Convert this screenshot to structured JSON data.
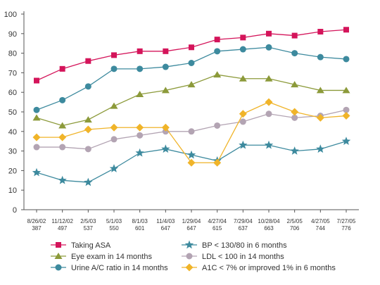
{
  "chart_data": {
    "type": "line",
    "categories": [
      [
        "8/26/02",
        "387"
      ],
      [
        "11/12/02",
        "497"
      ],
      [
        "2/5/03",
        "537"
      ],
      [
        "5/1/03",
        "550"
      ],
      [
        "8/1/03",
        "601"
      ],
      [
        "11/4/03",
        "647"
      ],
      [
        "1/29/04",
        "647"
      ],
      [
        "4/27/04",
        "615"
      ],
      [
        "7/29/04",
        "637"
      ],
      [
        "10/28/04",
        "663"
      ],
      [
        "2/5/05",
        "706"
      ],
      [
        "4/27/05",
        "744"
      ],
      [
        "7/27/05",
        "776"
      ]
    ],
    "ylim": [
      0,
      100
    ],
    "yticks": [
      0,
      10,
      20,
      30,
      40,
      50,
      60,
      70,
      80,
      90,
      100
    ],
    "grid": false,
    "legend_position": "bottom",
    "series": [
      {
        "name": "Taking ASA",
        "color": "#d4145a",
        "marker": "square",
        "values": [
          66,
          72,
          76,
          79,
          81,
          81,
          83,
          87,
          88,
          90,
          89,
          91,
          92
        ]
      },
      {
        "name": "Eye exam in 14 months",
        "color": "#8c9a3a",
        "marker": "triangle",
        "values": [
          47,
          43,
          46,
          53,
          59,
          61,
          64,
          69,
          67,
          67,
          64,
          61,
          61
        ]
      },
      {
        "name": "Urine A/C ratio in 14 months",
        "color": "#3d8a9e",
        "marker": "circle",
        "values": [
          51,
          56,
          63,
          72,
          72,
          73,
          75,
          81,
          82,
          83,
          80,
          78,
          77
        ]
      },
      {
        "name": "BP < 130/80 in 6 months",
        "color": "#3d8a9e",
        "marker": "star",
        "values": [
          19,
          15,
          14,
          21,
          29,
          31,
          28,
          25,
          33,
          33,
          30,
          31,
          35
        ]
      },
      {
        "name": "LDL < 100 in 14 months",
        "color": "#b3a4b3",
        "marker": "circle",
        "values": [
          32,
          32,
          31,
          36,
          38,
          40,
          40,
          43,
          45,
          49,
          47,
          48,
          51
        ]
      },
      {
        "name": "A1C < 7% or improved 1% in 6 months",
        "color": "#f0b429",
        "marker": "diamond",
        "values": [
          37,
          37,
          41,
          42,
          42,
          42,
          24,
          24,
          49,
          55,
          50,
          47,
          48
        ]
      }
    ]
  }
}
